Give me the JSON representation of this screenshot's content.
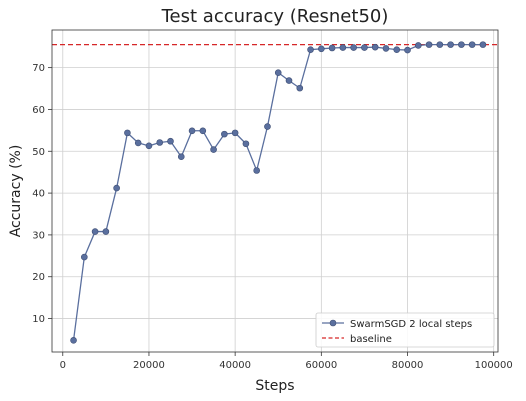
{
  "chart_data": {
    "type": "line",
    "title": "Test accuracy (Resnet50)",
    "xlabel": "Steps",
    "ylabel": "Accuracy (%)",
    "xlim": [
      -2500,
      101000
    ],
    "ylim": [
      2,
      79
    ],
    "xticks": [
      0,
      20000,
      40000,
      60000,
      80000,
      100000
    ],
    "xtick_labels": [
      "0",
      "20000",
      "40000",
      "60000",
      "80000",
      "100000"
    ],
    "yticks": [
      10,
      20,
      30,
      40,
      50,
      60,
      70
    ],
    "ytick_labels": [
      "10",
      "20",
      "30",
      "40",
      "50",
      "60",
      "70"
    ],
    "grid": true,
    "legend_position": "lower-right",
    "series": [
      {
        "name": "SwarmSGD 2 local steps",
        "color": "#5a6f9e",
        "marker": "circle",
        "x": [
          2500,
          5000,
          7500,
          10000,
          12500,
          15000,
          17500,
          20000,
          22500,
          25000,
          27500,
          30000,
          32500,
          35000,
          37500,
          40000,
          42500,
          45000,
          47500,
          50000,
          52500,
          55000,
          57500,
          60000,
          62500,
          65000,
          67500,
          70000,
          72500,
          75000,
          77500,
          80000,
          82500,
          85000,
          87500,
          90000,
          92500,
          95000,
          97500
        ],
        "y": [
          4.8,
          24.7,
          30.8,
          30.8,
          41.2,
          54.4,
          52.0,
          51.3,
          52.1,
          52.4,
          48.7,
          54.9,
          54.9,
          50.4,
          54.1,
          54.4,
          51.8,
          45.4,
          55.9,
          68.8,
          66.9,
          65.1,
          74.3,
          74.5,
          74.7,
          74.8,
          74.8,
          74.8,
          74.9,
          74.6,
          74.3,
          74.2,
          75.3,
          75.5,
          75.5,
          75.5,
          75.5,
          75.5,
          75.5
        ]
      }
    ],
    "baseline": {
      "name": "baseline",
      "color": "#d62728",
      "style": "dashed",
      "y": 75.5
    }
  }
}
